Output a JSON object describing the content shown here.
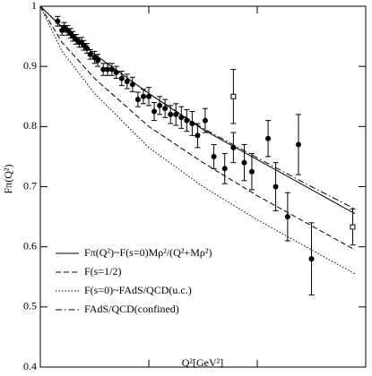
{
  "chart_data": {
    "type": "line",
    "xlabel": "Q²[GeV²]",
    "ylabel": "Fπ(Q²)",
    "xlim": [
      0,
      0.3
    ],
    "ylim": [
      0.4,
      1
    ],
    "xticks": [
      0,
      0.1,
      0.2
    ],
    "yticks": [
      0.4,
      0.5,
      0.6,
      0.7,
      0.8,
      0.9,
      1
    ],
    "legend": "lower left",
    "series": [
      {
        "name": "Fπ(Q²)~F(s=0)Mρ²/(Q²+Mρ²)",
        "kind": "line",
        "style": "solid",
        "color": "#000000",
        "x": [
          0,
          0.02,
          0.05,
          0.1,
          0.15,
          0.2,
          0.25,
          0.29
        ],
        "values": [
          1,
          0.965,
          0.92,
          0.855,
          0.795,
          0.745,
          0.695,
          0.655
        ]
      },
      {
        "name": "F(s=1/2)",
        "kind": "line",
        "style": "dashed",
        "color": "#000000",
        "x": [
          0,
          0.02,
          0.05,
          0.1,
          0.15,
          0.2,
          0.25,
          0.29
        ],
        "values": [
          1,
          0.94,
          0.88,
          0.8,
          0.74,
          0.685,
          0.635,
          0.595
        ]
      },
      {
        "name": "F(s=0)~FAdS/QCD(u.c.)",
        "kind": "line",
        "style": "dotted",
        "color": "#000000",
        "x": [
          0,
          0.02,
          0.05,
          0.1,
          0.15,
          0.2,
          0.25,
          0.29
        ],
        "values": [
          1,
          0.925,
          0.855,
          0.765,
          0.7,
          0.645,
          0.595,
          0.555
        ]
      },
      {
        "name": "FAdS/QCD(confined)",
        "kind": "line",
        "style": "dashdot",
        "color": "#000000",
        "x": [
          0,
          0.02,
          0.05,
          0.1,
          0.15,
          0.2,
          0.25,
          0.29
        ],
        "values": [
          1,
          0.965,
          0.92,
          0.855,
          0.797,
          0.748,
          0.7,
          0.663
        ]
      },
      {
        "kind": "scatter",
        "marker": "circle",
        "color": "#000000",
        "x": [
          0.016,
          0.02,
          0.022,
          0.025,
          0.028,
          0.03,
          0.033,
          0.036,
          0.038,
          0.04,
          0.043,
          0.046,
          0.05,
          0.053,
          0.058,
          0.062,
          0.066,
          0.07,
          0.075,
          0.08,
          0.085,
          0.09,
          0.095,
          0.1,
          0.105,
          0.11,
          0.115,
          0.12,
          0.125,
          0.13,
          0.135,
          0.14,
          0.145,
          0.152,
          0.16,
          0.17,
          0.178,
          0.188,
          0.195,
          0.21,
          0.217,
          0.228,
          0.238,
          0.25
        ],
        "values": [
          0.975,
          0.96,
          0.965,
          0.96,
          0.955,
          0.95,
          0.945,
          0.94,
          0.94,
          0.935,
          0.93,
          0.92,
          0.915,
          0.91,
          0.895,
          0.895,
          0.895,
          0.89,
          0.88,
          0.875,
          0.87,
          0.845,
          0.85,
          0.85,
          0.825,
          0.835,
          0.83,
          0.82,
          0.82,
          0.815,
          0.81,
          0.805,
          0.785,
          0.81,
          0.75,
          0.73,
          0.765,
          0.74,
          0.725,
          0.78,
          0.7,
          0.65,
          0.77,
          0.58
        ],
        "errors": [
          0.008,
          0.008,
          0.008,
          0.008,
          0.008,
          0.008,
          0.008,
          0.008,
          0.008,
          0.008,
          0.008,
          0.008,
          0.01,
          0.01,
          0.01,
          0.01,
          0.01,
          0.01,
          0.012,
          0.012,
          0.012,
          0.012,
          0.012,
          0.015,
          0.015,
          0.015,
          0.015,
          0.015,
          0.018,
          0.018,
          0.018,
          0.02,
          0.02,
          0.02,
          0.02,
          0.025,
          0.025,
          0.03,
          0.03,
          0.03,
          0.04,
          0.04,
          0.05,
          0.06
        ]
      },
      {
        "kind": "scatter",
        "marker": "square",
        "color": "#000000",
        "x": [
          0.178,
          0.288
        ],
        "values": [
          0.85,
          0.633
        ],
        "errors": [
          0.045,
          0.03
        ]
      }
    ]
  }
}
